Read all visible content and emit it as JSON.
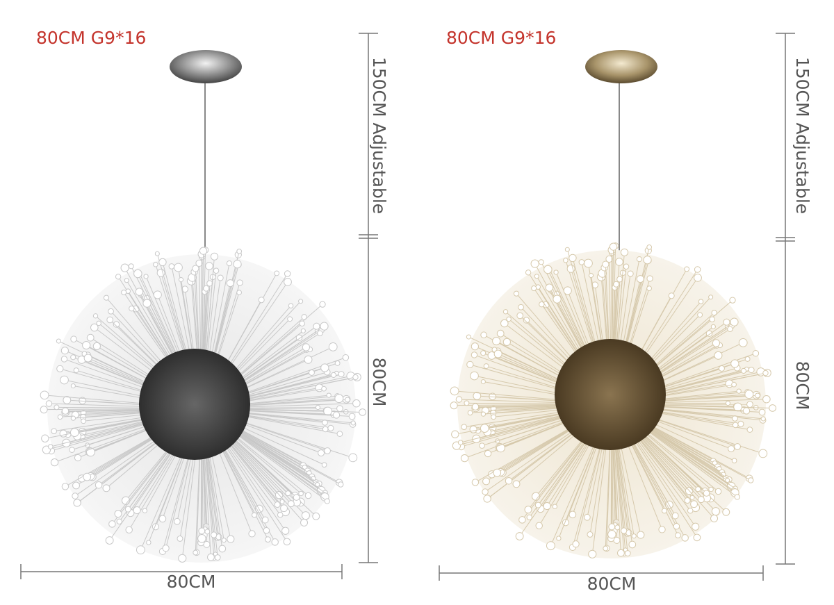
{
  "left": {
    "spec": "80CM G9*16",
    "cable_length": "150CM Adjustable",
    "height": "80CM",
    "width": "80CM"
  },
  "right": {
    "spec": "80CM G9*16",
    "cable_length": "150CM Adjustable",
    "height": "80CM",
    "width": "80CM"
  }
}
